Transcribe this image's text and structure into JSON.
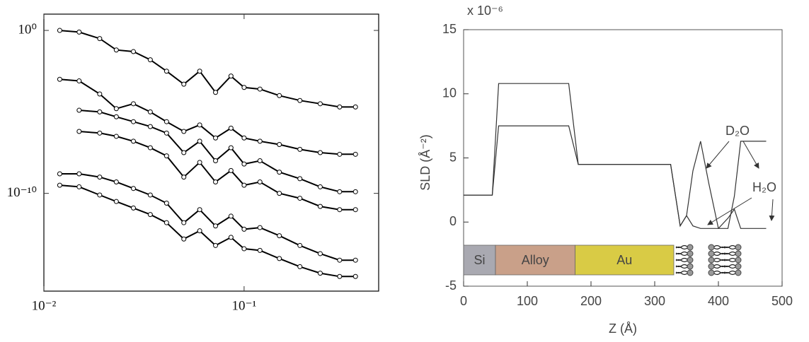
{
  "chart_data": [
    {
      "type": "scatter-line",
      "log_scale": true,
      "markers": true,
      "xlim": [
        0.01,
        0.47
      ],
      "ylim": [
        1e-16,
        10
      ],
      "xticks": [
        {
          "value": 0.01,
          "label": "10⁻²"
        },
        {
          "value": 0.1,
          "label": "10⁻¹"
        }
      ],
      "yticks": [
        {
          "value": 1,
          "label": "10⁰"
        },
        {
          "value": 1e-10,
          "label": "10⁻¹⁰"
        }
      ],
      "x": [
        0.012,
        0.015,
        0.019,
        0.023,
        0.028,
        0.034,
        0.041,
        0.05,
        0.06,
        0.072,
        0.086,
        0.1,
        0.12,
        0.15,
        0.19,
        0.24,
        0.3,
        0.36
      ],
      "series": [
        {
          "color": "#000000",
          "values": [
            1,
            0.794,
            0.316,
            0.0631,
            0.0501,
            0.0158,
            0.00316,
            0.000501,
            0.00316,
            0.000158,
            0.00158,
            0.000316,
            0.000251,
            0.0001,
            5.01e-05,
            3.16e-05,
            2e-05,
            2e-05
          ]
        },
        {
          "color": "#000000",
          "values": [
            0.001,
            0.000794,
            0.000126,
            1.58e-05,
            3.16e-05,
            1e-05,
            2.51e-06,
            6.31e-07,
            1.58e-06,
            2.51e-07,
            1e-06,
            2.51e-07,
            1.58e-07,
            1e-07,
            5.01e-08,
            3.16e-08,
            2.51e-08,
            2.51e-08
          ]
        },
        {
          "color": "#000000",
          "values": [
            null,
            1.26e-05,
            1e-05,
            5.01e-06,
            2.51e-06,
            1.26e-06,
            5.01e-07,
            3.16e-08,
            1.58e-07,
            1e-08,
            6.31e-08,
            6.31e-09,
            1e-08,
            2e-09,
            7.94e-10,
            2.51e-10,
            1.26e-10,
            1.26e-10
          ]
        },
        {
          "color": "#000000",
          "values": [
            null,
            6.31e-07,
            5.01e-07,
            3.16e-07,
            1.58e-07,
            6.31e-08,
            2e-08,
            1e-09,
            7.94e-09,
            5.01e-10,
            2.51e-09,
            3.16e-10,
            5.01e-10,
            1e-10,
            5.01e-11,
            1.58e-11,
            1e-11,
            1e-11
          ]
        },
        {
          "color": "#000000",
          "values": [
            1.58e-09,
            1.58e-09,
            1e-09,
            5.01e-10,
            2e-10,
            7.94e-11,
            2.51e-11,
            1.58e-12,
            1e-11,
            1e-12,
            3.98e-12,
            6.31e-13,
            7.94e-13,
            2.51e-13,
            6.31e-14,
            2e-14,
            7.94e-15,
            7.94e-15
          ]
        },
        {
          "color": "#000000",
          "values": [
            3.16e-10,
            2.51e-10,
            7.94e-11,
            3.16e-11,
            1.26e-11,
            5.01e-12,
            1.58e-12,
            1.58e-13,
            5.01e-13,
            6.31e-14,
            2e-13,
            3.98e-14,
            3.16e-14,
            1e-14,
            3.16e-15,
            1.26e-15,
            7.94e-16,
            7.94e-16
          ]
        }
      ]
    },
    {
      "type": "line",
      "xlabel": "Z (Å)",
      "ylabel": "SLD (Å⁻²)",
      "y_multiplier": "x 10⁻⁶",
      "xlim": [
        0,
        500
      ],
      "ylim": [
        -5,
        15
      ],
      "xticks": [
        0,
        100,
        200,
        300,
        400,
        500
      ],
      "yticks": [
        -5,
        0,
        5,
        10,
        15
      ],
      "x": [
        0,
        45,
        55,
        165,
        180,
        325,
        340,
        350,
        360,
        372,
        385,
        400,
        415,
        425,
        435,
        475
      ],
      "series": [
        {
          "color": "#333333",
          "values": [
            2.1,
            2.1,
            10.8,
            10.8,
            4.5,
            4.5,
            -0.3,
            0.5,
            4,
            6.3,
            3,
            -0.5,
            -0.5,
            2,
            6.3,
            6.3
          ]
        },
        {
          "color": "#333333",
          "values": [
            2.1,
            2.1,
            7.5,
            7.5,
            4.5,
            4.5,
            -0.3,
            0.5,
            -0.3,
            -0.5,
            -0.5,
            -0.5,
            0.3,
            1,
            -0.5,
            -0.5
          ]
        }
      ],
      "annotations": [
        "D₂O",
        "H₂O"
      ],
      "layers": [
        {
          "label": "Si",
          "start": 0,
          "end": 50,
          "color": "#a9a9b1"
        },
        {
          "label": "Alloy",
          "start": 50,
          "end": 175,
          "color": "#c9a089"
        },
        {
          "label": "Au",
          "start": 175,
          "end": 330,
          "color": "#d9cb45"
        }
      ]
    }
  ]
}
